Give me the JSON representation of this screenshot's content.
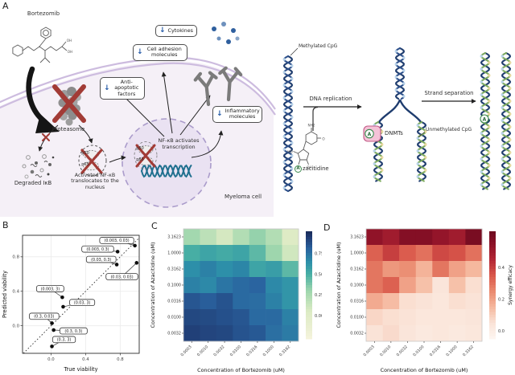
{
  "panels": {
    "a": "A",
    "b": "B",
    "c": "C",
    "d": "D"
  },
  "icons": {
    "down_arrow": "↓"
  },
  "panel_a": {
    "myeloma": {
      "bortezomib": "Bortezomib",
      "proteasome": "Proteasome",
      "degraded_ikb": "Degraded IκB",
      "activated_nfkb": "Activated NF-κB translocates to the nucleus",
      "nfkb_transcription": "NF-κB activates transcription",
      "myeloma_cell": "Myeloma cell",
      "p50": "p50",
      "p65": "p65",
      "boxes": {
        "cytokines": "Cytokines",
        "cell_adhesion": "Cell adhesion molecules",
        "anti_apoptotic": "Anti-apoptotic factors",
        "inflammatory": "Inflammatory molecules"
      }
    },
    "methylation": {
      "methylated_cpg": "Methylated CpG",
      "dna_replication": "DNA replication",
      "strand_separation": "Strand separation",
      "dnmts": "DNMTs",
      "unmethylated_cpg": "Unmethylated CpG",
      "a_letter": "A",
      "azacitidine_rest": "zacitidine"
    },
    "molecules": {
      "bortezomib_atoms": [
        "OH",
        "OH"
      ],
      "azacitidine_atoms": [
        "NH2",
        "HO",
        "OH",
        "OH",
        "O"
      ]
    }
  },
  "chart_data": [
    {
      "panel": "B",
      "type": "scatter",
      "xlabel": "True viability",
      "ylabel": "Predicted viability",
      "xticks": [
        {
          "v": 0.0,
          "label": "0.0"
        },
        {
          "v": 0.4,
          "label": "0.4"
        },
        {
          "v": 0.8,
          "label": "0.8"
        }
      ],
      "yticks": [
        {
          "v": 0.0,
          "label": "0.0"
        },
        {
          "v": 0.4,
          "label": "0.4"
        },
        {
          "v": 0.8,
          "label": "0.8"
        }
      ],
      "xlim": [
        -0.33,
        1.02
      ],
      "ylim": [
        -0.32,
        1.05
      ],
      "diagonal": true,
      "points": [
        {
          "label": "(0.003, 0.03)",
          "x": 0.97,
          "y": 0.93,
          "lx": 0.76,
          "ly": 0.99
        },
        {
          "label": "(0.003, 0.3)",
          "x": 0.77,
          "y": 0.86,
          "lx": 0.54,
          "ly": 0.89
        },
        {
          "label": "(0.03, 0.3)",
          "x": 0.76,
          "y": 0.71,
          "lx": 0.58,
          "ly": 0.77
        },
        {
          "label": "(0.03, 0.03)",
          "x": 0.99,
          "y": 0.73,
          "lx": 0.82,
          "ly": 0.57
        },
        {
          "label": "(0.003, 3)",
          "x": 0.13,
          "y": 0.33,
          "lx": -0.01,
          "ly": 0.43
        },
        {
          "label": "(0.03, 3)",
          "x": 0.14,
          "y": 0.22,
          "lx": 0.36,
          "ly": 0.27
        },
        {
          "label": "(0.3, 0.03)",
          "x": 0.01,
          "y": 0.03,
          "lx": -0.08,
          "ly": 0.11
        },
        {
          "label": "(0.3, 0.3)",
          "x": 0.03,
          "y": -0.05,
          "lx": 0.26,
          "ly": -0.06
        },
        {
          "label": "(0.3, 3)",
          "x": 0.01,
          "y": -0.24,
          "lx": 0.15,
          "ly": -0.16
        }
      ]
    },
    {
      "panel": "C",
      "type": "heatmap",
      "xlabel": "Concentration of Bortezomib (uM)",
      "ylabel": "Concentration of Azacitidine (uM)",
      "x_categories": [
        "0.0003",
        "0.0010",
        "0.0032",
        "0.0100",
        "0.0316",
        "0.1000",
        "0.3162"
      ],
      "y_categories": [
        "3.1623",
        "1.0000",
        "0.3162",
        "0.1000",
        "0.0316",
        "0.0100",
        "0.0032"
      ],
      "values": [
        [
          0.28,
          0.18,
          0.08,
          0.22,
          0.32,
          0.22,
          0.03
        ],
        [
          0.5,
          0.55,
          0.52,
          0.55,
          0.45,
          0.3,
          0.1
        ],
        [
          0.65,
          0.7,
          0.65,
          0.68,
          0.55,
          0.58,
          0.45
        ],
        [
          0.7,
          0.67,
          0.74,
          0.78,
          0.8,
          0.67,
          0.62
        ],
        [
          0.85,
          0.82,
          0.86,
          0.78,
          0.77,
          0.7,
          0.62
        ],
        [
          0.9,
          0.89,
          0.87,
          0.85,
          0.78,
          0.78,
          0.7
        ],
        [
          0.93,
          0.91,
          0.9,
          0.86,
          0.84,
          0.76,
          0.72
        ]
      ],
      "colorbar": {
        "label": "Predicted viability",
        "min": -0.28,
        "max": 1.02,
        "ticks": [
          {
            "v": 0.75,
            "label": "0.75"
          },
          {
            "v": 0.5,
            "label": "0.50"
          },
          {
            "v": 0.25,
            "label": "0.25"
          },
          {
            "v": 0.0,
            "label": "0.00"
          }
        ],
        "stops": [
          {
            "v": -0.28,
            "c": "#f5f3dc"
          },
          {
            "v": 0.05,
            "c": "#dcebc4"
          },
          {
            "v": 0.3,
            "c": "#9ed6ad"
          },
          {
            "v": 0.5,
            "c": "#47aea4"
          },
          {
            "v": 0.65,
            "c": "#2d8fa9"
          },
          {
            "v": 0.8,
            "c": "#2a64a0"
          },
          {
            "v": 0.95,
            "c": "#203a72"
          },
          {
            "v": 1.02,
            "c": "#192a56"
          }
        ]
      }
    },
    {
      "panel": "D",
      "type": "heatmap",
      "xlabel": "Concentration of Bortezomib (uM)",
      "ylabel": "Concentration of Azacitidine (uM)",
      "x_categories": [
        "0.0003",
        "0.0010",
        "0.0032",
        "0.0100",
        "0.0316",
        "0.1000",
        "0.3162"
      ],
      "y_categories": [
        "3.1623",
        "1.0000",
        "0.3162",
        "0.1000",
        "0.0316",
        "0.0100",
        "0.0032"
      ],
      "values": [
        [
          0.54,
          0.5,
          0.57,
          0.57,
          0.53,
          0.5,
          0.6
        ],
        [
          0.33,
          0.4,
          0.34,
          0.3,
          0.38,
          0.36,
          0.3
        ],
        [
          0.29,
          0.22,
          0.24,
          0.16,
          0.29,
          0.2,
          0.15
        ],
        [
          0.29,
          0.33,
          0.2,
          0.13,
          0.04,
          0.13,
          0.06
        ],
        [
          0.18,
          0.14,
          0.06,
          0.05,
          0.03,
          0.06,
          0.05
        ],
        [
          0.08,
          0.06,
          0.05,
          0.03,
          0.03,
          0.03,
          0.04
        ],
        [
          0.05,
          0.07,
          0.04,
          0.02,
          0.03,
          0.02,
          0.03
        ]
      ],
      "colorbar": {
        "label": "Synergy efficacy",
        "min": -0.05,
        "max": 0.63,
        "ticks": [
          {
            "v": 0.4,
            "label": "0.4"
          },
          {
            "v": 0.2,
            "label": "0.2"
          },
          {
            "v": 0.0,
            "label": "0.0"
          }
        ],
        "stops": [
          {
            "v": -0.05,
            "c": "#fdf6f1"
          },
          {
            "v": 0.05,
            "c": "#fae3d7"
          },
          {
            "v": 0.15,
            "c": "#f5b89e"
          },
          {
            "v": 0.25,
            "c": "#ea8a6f"
          },
          {
            "v": 0.35,
            "c": "#d9574a"
          },
          {
            "v": 0.45,
            "c": "#b32735"
          },
          {
            "v": 0.55,
            "c": "#8c1127"
          },
          {
            "v": 0.63,
            "c": "#6d0a1f"
          }
        ]
      }
    }
  ]
}
